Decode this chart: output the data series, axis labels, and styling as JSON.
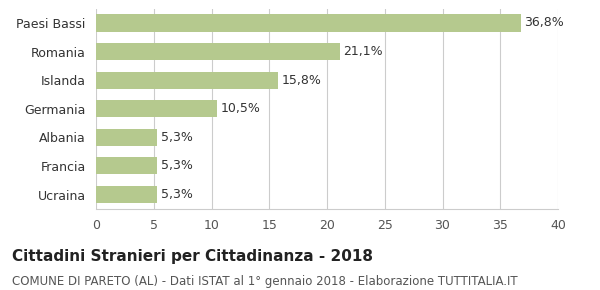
{
  "categories": [
    "Paesi Bassi",
    "Romania",
    "Islanda",
    "Germania",
    "Albania",
    "Francia",
    "Ucraina"
  ],
  "values": [
    36.8,
    21.1,
    15.8,
    10.5,
    5.3,
    5.3,
    5.3
  ],
  "labels": [
    "36,8%",
    "21,1%",
    "15,8%",
    "10,5%",
    "5,3%",
    "5,3%",
    "5,3%"
  ],
  "bar_color": "#b5c98e",
  "background_color": "#ffffff",
  "xlim": [
    0,
    40
  ],
  "xticks": [
    0,
    5,
    10,
    15,
    20,
    25,
    30,
    35,
    40
  ],
  "title": "Cittadini Stranieri per Cittadinanza - 2018",
  "subtitle": "COMUNE DI PARETO (AL) - Dati ISTAT al 1° gennaio 2018 - Elaborazione TUTTITALIA.IT",
  "title_fontsize": 11,
  "subtitle_fontsize": 8.5,
  "label_fontsize": 9,
  "tick_fontsize": 9,
  "grid_color": "#cccccc"
}
